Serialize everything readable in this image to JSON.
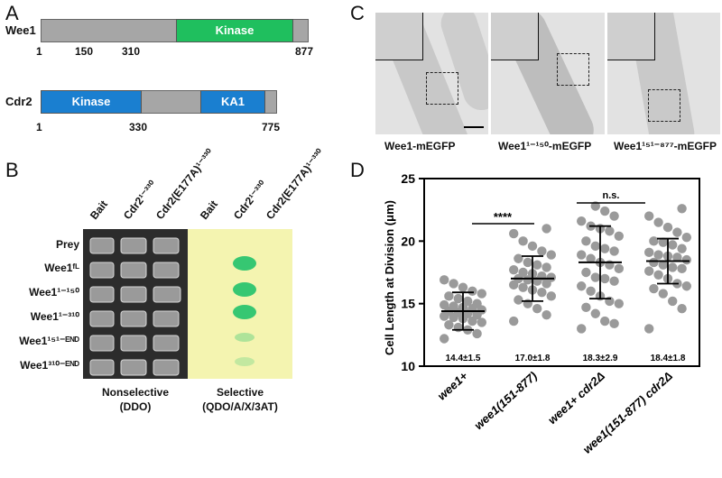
{
  "panel_a": {
    "letter": "A",
    "wee1": {
      "name": "Wee1",
      "domain": "Kinase",
      "ticks": [
        "1",
        "150",
        "310",
        "877"
      ],
      "domain_color": "#1fbf5e"
    },
    "cdr2": {
      "name": "Cdr2",
      "domains": [
        "Kinase",
        "KA1"
      ],
      "ticks": [
        "1",
        "330",
        "775"
      ],
      "domain_color": "#1a7fd0"
    }
  },
  "panel_b": {
    "letter": "B",
    "columns": [
      "Bait",
      "Cdr2¹⁻³³⁰",
      "Cdr2(E177A)¹⁻³³⁰",
      "Bait",
      "Cdr2¹⁻³³⁰",
      "Cdr2(E177A)¹⁻³³⁰"
    ],
    "rows": [
      "Prey",
      "Wee1ᶠᴸ",
      "Wee1¹⁻¹⁵⁰",
      "Wee1¹⁻³¹⁰",
      "Wee1¹⁵¹⁻ᴱᴺᴰ",
      "Wee1³¹⁰⁻ᴱᴺᴰ"
    ],
    "nonselective": {
      "title": "Nonselective",
      "medium": "(DDO)"
    },
    "selective": {
      "title": "Selective",
      "medium": "(QDO/A/X/3AT)"
    },
    "plate_color": "#f4f4b0"
  },
  "panel_c": {
    "letter": "C",
    "captions": [
      "Wee1-mEGFP",
      "Wee1¹⁻¹⁵⁰-mEGFP",
      "Wee1¹⁵¹⁻⁸⁷⁷-mEGFP"
    ]
  },
  "panel_d": {
    "letter": "D",
    "significance": [
      "****",
      "n.s."
    ],
    "stats": [
      "14.4±1.5",
      "17.0±1.8",
      "18.3±2.9",
      "18.4±1.8"
    ]
  },
  "chart_data": {
    "type": "scatter",
    "ylabel": "Cell Length at Division (μm)",
    "ylim": [
      10,
      25
    ],
    "yticks": [
      10,
      15,
      20,
      25
    ],
    "categories": [
      "wee1+",
      "wee1(151-877)",
      "wee1+ cdr2Δ",
      "wee1(151-877) cdr2Δ"
    ],
    "series": [
      {
        "mean": 14.4,
        "sd": 1.5,
        "values": [
          12.2,
          12.6,
          12.9,
          13.1,
          13.3,
          13.5,
          13.6,
          13.8,
          13.9,
          14.0,
          14.1,
          14.2,
          14.3,
          14.4,
          14.5,
          14.6,
          14.7,
          14.8,
          14.9,
          15.0,
          15.2,
          15.4,
          15.6,
          15.8,
          16.0,
          16.3,
          16.6,
          16.9
        ]
      },
      {
        "mean": 17.0,
        "sd": 1.8,
        "values": [
          13.6,
          14.1,
          14.6,
          15.0,
          15.3,
          15.6,
          15.9,
          16.1,
          16.3,
          16.5,
          16.6,
          16.8,
          16.9,
          17.0,
          17.1,
          17.2,
          17.4,
          17.5,
          17.7,
          17.9,
          18.1,
          18.3,
          18.6,
          18.9,
          19.2,
          19.6,
          20.0,
          20.6,
          21.0
        ]
      },
      {
        "mean": 18.3,
        "sd": 2.9,
        "values": [
          13.0,
          13.6,
          14.2,
          14.7,
          15.2,
          15.6,
          16.0,
          16.4,
          16.8,
          17.1,
          17.5,
          17.8,
          18.1,
          18.3,
          18.6,
          18.9,
          19.2,
          19.6,
          20.0,
          20.4,
          20.8,
          21.2,
          21.6,
          22.0,
          22.4,
          22.8,
          13.4,
          15.0,
          17.0,
          19.4,
          21.0
        ]
      },
      {
        "mean": 18.4,
        "sd": 1.8,
        "values": [
          13.0,
          14.6,
          15.2,
          15.8,
          16.2,
          16.6,
          17.0,
          17.3,
          17.6,
          17.9,
          18.1,
          18.3,
          18.5,
          18.7,
          18.9,
          19.1,
          19.4,
          19.7,
          20.0,
          20.3,
          20.7,
          21.1,
          21.5,
          22.0,
          22.6,
          16.4,
          17.8,
          18.8,
          19.9
        ]
      }
    ]
  }
}
